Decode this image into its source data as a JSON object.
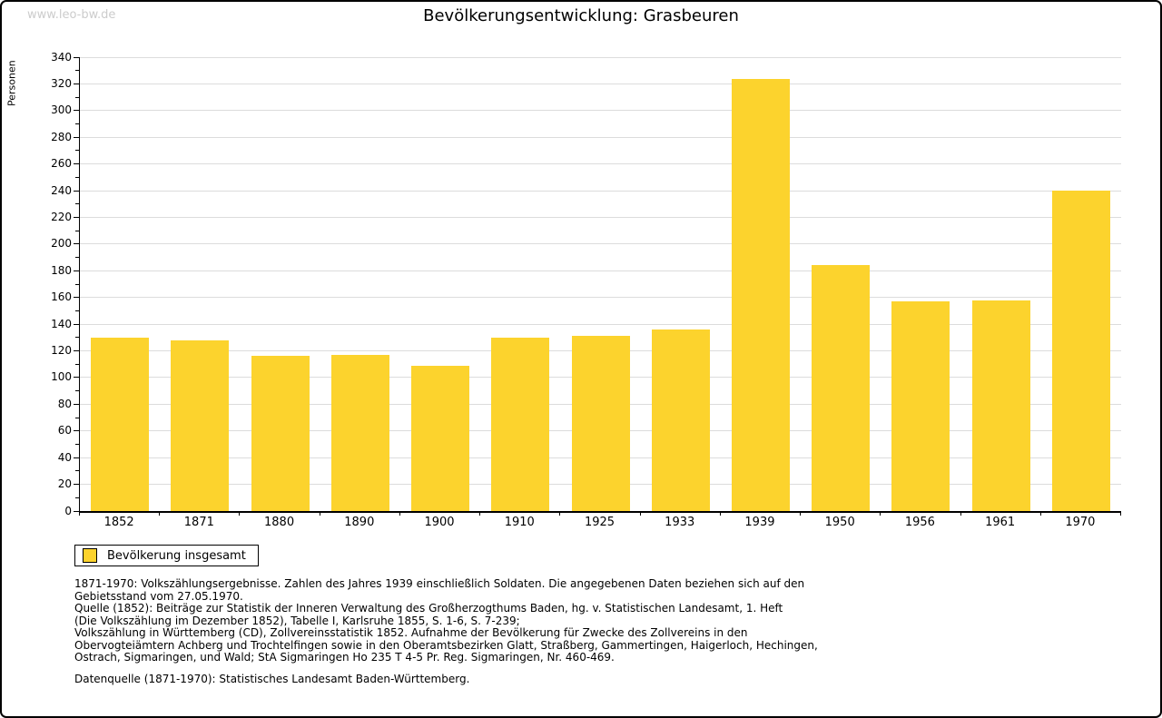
{
  "watermark": "www.leo-bw.de",
  "title": "Bevölkerungsentwicklung: Grasbeuren",
  "legend": {
    "label": "Bevölkerung insgesamt",
    "swatch_color": "#FCD32D"
  },
  "colors": {
    "bar": "#FCD32D",
    "grid": "#DCDCDC",
    "axis": "#000000",
    "watermark": "#CCCCCC"
  },
  "chart_data": {
    "type": "bar",
    "title": "Bevölkerungsentwicklung: Grasbeuren",
    "xlabel": "",
    "ylabel": "Personen",
    "ylim": [
      0,
      340
    ],
    "ytick_step": 20,
    "yminor_step": 10,
    "grid": true,
    "legend_position": "bottom-left",
    "categories": [
      "1852",
      "1871",
      "1880",
      "1890",
      "1900",
      "1910",
      "1925",
      "1933",
      "1939",
      "1950",
      "1956",
      "1961",
      "1970"
    ],
    "series": [
      {
        "name": "Bevölkerung insgesamt",
        "color": "#FCD32D",
        "values": [
          130,
          128,
          116,
          117,
          109,
          130,
          131,
          136,
          324,
          184,
          157,
          158,
          240
        ]
      }
    ]
  },
  "footnotes": {
    "lines": [
      "1871-1970: Volkszählungsergebnisse. Zahlen des Jahres 1939 einschließlich Soldaten. Die angegebenen Daten beziehen sich auf den",
      "Gebietsstand vom 27.05.1970.",
      "Quelle (1852): Beiträge zur Statistik der Inneren Verwaltung des Großherzogthums Baden, hg. v. Statistischen Landesamt, 1. Heft",
      "(Die Volkszählung im Dezember 1852), Tabelle I, Karlsruhe 1855, S. 1-6, S. 7-239;",
      "Volkszählung in Württemberg (CD), Zollvereinsstatistik 1852. Aufnahme der Bevölkerung für Zwecke des Zollvereins in den",
      "Obervogteiämtern Achberg und Trochtelfingen sowie in den Oberamtsbezirken Glatt, Straßberg, Gammertingen, Haigerloch, Hechingen,",
      "Ostrach, Sigmaringen, und Wald; StA Sigmaringen Ho 235 T 4-5 Pr. Reg. Sigmaringen, Nr. 460-469."
    ],
    "source_line": "Datenquelle (1871-1970): Statistisches Landesamt Baden-Württemberg."
  }
}
